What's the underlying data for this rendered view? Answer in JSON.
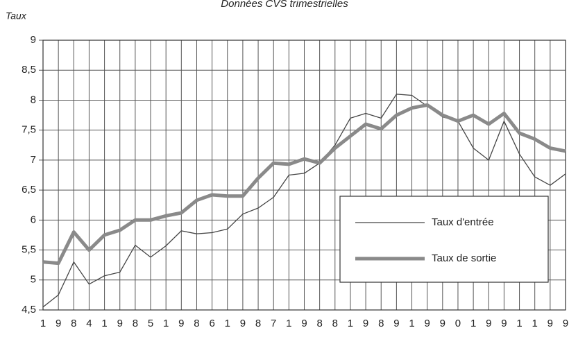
{
  "chart_data": {
    "type": "line",
    "title": "Données CVS trimestrielles",
    "y_label": "Taux",
    "categories": [
      "1",
      "9",
      "8",
      "4",
      "1",
      "9",
      "8",
      "5",
      "1",
      "9",
      "8",
      "6",
      "1",
      "9",
      "8",
      "7",
      "1",
      "9",
      "8",
      "8",
      "1",
      "9",
      "8",
      "9",
      "1",
      "9",
      "9",
      "0",
      "1",
      "9",
      "9",
      "1",
      "1",
      "9",
      "9"
    ],
    "series": [
      {
        "name": "Taux d'entrée",
        "color": "#444444",
        "values": [
          4.55,
          4.75,
          5.3,
          4.93,
          5.07,
          5.13,
          5.58,
          5.38,
          5.57,
          5.82,
          5.77,
          5.79,
          5.85,
          6.1,
          6.2,
          6.38,
          6.75,
          6.78,
          6.95,
          7.25,
          7.7,
          7.78,
          7.7,
          8.1,
          8.08,
          7.9,
          7.72,
          7.65,
          7.2,
          7.0,
          7.65,
          7.1,
          6.72,
          6.58,
          6.77
        ]
      },
      {
        "name": "Taux de sortie",
        "color": "#8a8a8a",
        "values": [
          5.3,
          5.28,
          5.8,
          5.5,
          5.75,
          5.83,
          6.0,
          6.0,
          6.07,
          6.12,
          6.33,
          6.42,
          6.4,
          6.4,
          6.7,
          6.95,
          6.93,
          7.02,
          6.95,
          7.2,
          7.4,
          7.6,
          7.52,
          7.75,
          7.87,
          7.92,
          7.75,
          7.65,
          7.75,
          7.6,
          7.78,
          7.45,
          7.35,
          7.2,
          7.15
        ]
      }
    ],
    "ylim": [
      4.5,
      9
    ],
    "yticks": [
      {
        "value": 4.5,
        "label": "4,5"
      },
      5,
      {
        "value": 5.5,
        "label": "5,5"
      },
      6,
      {
        "value": 6.5,
        "label": "6,5"
      },
      7,
      {
        "value": 7.5,
        "label": "7,5"
      },
      8,
      {
        "value": 8.5,
        "label": "8,5"
      },
      9
    ],
    "grid": true,
    "legend": "lower right"
  }
}
